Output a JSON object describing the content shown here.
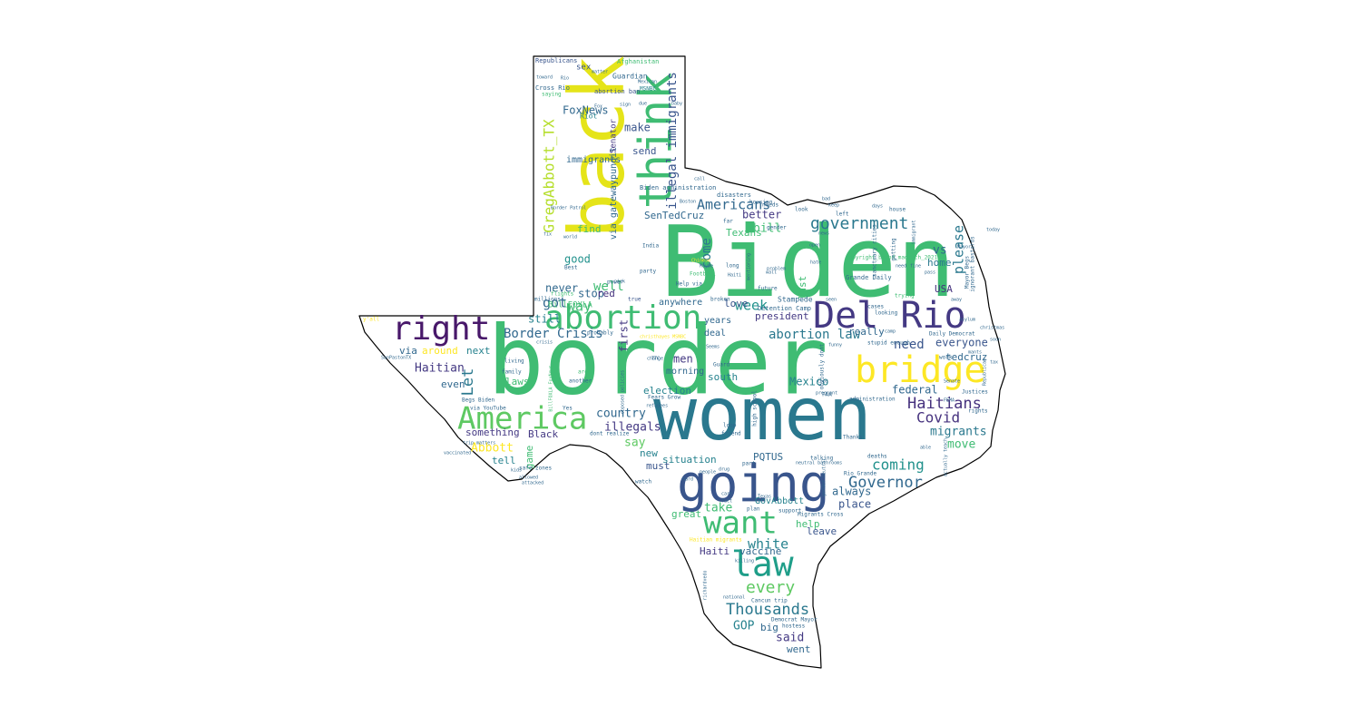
{
  "wordcloud": {
    "words": [
      {
        "text": "Biden",
        "color": "#3fbc73"
      },
      {
        "text": "border",
        "color": "#3fbc73"
      },
      {
        "text": "women",
        "color": "#2a788e"
      },
      {
        "text": "back",
        "color": "#e5e419"
      },
      {
        "text": "think",
        "color": "#3fbc73"
      },
      {
        "text": "going",
        "color": "#39558c"
      },
      {
        "text": "bridge",
        "color": "#fde725"
      },
      {
        "text": "Del Rio",
        "color": "#443983"
      },
      {
        "text": "abortion",
        "color": "#3fbc73"
      },
      {
        "text": "right",
        "color": "#48186a"
      },
      {
        "text": "America",
        "color": "#5ec962"
      },
      {
        "text": "law",
        "color": "#1f9e89"
      },
      {
        "text": "want",
        "color": "#3fbc73"
      },
      {
        "text": "government",
        "color": "#2a788e"
      },
      {
        "text": "GregAbbott_TX",
        "color": "#b5de2b"
      },
      {
        "text": "illegal immigrants",
        "color": "#39558c"
      },
      {
        "text": "Haitians",
        "color": "#46327e"
      },
      {
        "text": "every",
        "color": "#5ec962"
      },
      {
        "text": "Thousands",
        "color": "#2a788e"
      },
      {
        "text": "Americans",
        "color": "#31688e"
      },
      {
        "text": "Governor",
        "color": "#31688e"
      },
      {
        "text": "coming",
        "color": "#21918c"
      },
      {
        "text": "please",
        "color": "#2a788e"
      },
      {
        "text": "Covid",
        "color": "#46327e"
      },
      {
        "text": "white",
        "color": "#26828e"
      },
      {
        "text": "abortion law",
        "color": "#2a788e"
      },
      {
        "text": "Border Crisis",
        "color": "#31688e"
      },
      {
        "text": "Let",
        "color": "#2a788e"
      },
      {
        "text": "way",
        "color": "#3fbc73"
      },
      {
        "text": "got",
        "color": "#31688e"
      },
      {
        "text": "Haitian",
        "color": "#443983"
      },
      {
        "text": "Abbott",
        "color": "#fde725"
      },
      {
        "text": "need",
        "color": "#39558c"
      },
      {
        "text": "Mexico",
        "color": "#26828e"
      },
      {
        "text": "illegals",
        "color": "#443983"
      },
      {
        "text": "country",
        "color": "#31688e"
      },
      {
        "text": "week",
        "color": "#21918c"
      },
      {
        "text": "come",
        "color": "#2a788e"
      },
      {
        "text": "migrants",
        "color": "#2a788e"
      },
      {
        "text": "move",
        "color": "#3fbc73"
      },
      {
        "text": "say",
        "color": "#5ec962"
      },
      {
        "text": "said",
        "color": "#443983"
      },
      {
        "text": "GOP",
        "color": "#26828e"
      },
      {
        "text": "FoxNews",
        "color": "#31688e"
      },
      {
        "text": "well",
        "color": "#3fbc73"
      },
      {
        "text": "good",
        "color": "#21918c"
      },
      {
        "text": "stop",
        "color": "#31688e"
      },
      {
        "text": "still",
        "color": "#26828e"
      },
      {
        "text": "men",
        "color": "#443983"
      },
      {
        "text": "make",
        "color": "#39558c"
      },
      {
        "text": "vs",
        "color": "#31688e"
      },
      {
        "text": "home",
        "color": "#2a788e"
      },
      {
        "text": "federal",
        "color": "#31688e"
      },
      {
        "text": "everyone",
        "color": "#39558c"
      },
      {
        "text": "tedcruz",
        "color": "#31688e"
      },
      {
        "text": "place",
        "color": "#39558c"
      },
      {
        "text": "always",
        "color": "#31688e"
      },
      {
        "text": "take",
        "color": "#3fbc73"
      },
      {
        "text": "help",
        "color": "#3fbc73"
      },
      {
        "text": "leave",
        "color": "#39558c"
      },
      {
        "text": "situation",
        "color": "#26828e"
      },
      {
        "text": "election",
        "color": "#26828e"
      },
      {
        "text": "bill",
        "color": "#3fbc73"
      },
      {
        "text": "Texans",
        "color": "#3fbc73"
      },
      {
        "text": "better",
        "color": "#443983"
      },
      {
        "text": "president",
        "color": "#443983"
      },
      {
        "text": "first",
        "color": "#443983"
      },
      {
        "text": "never",
        "color": "#31688e"
      },
      {
        "text": "red",
        "color": "#46327e"
      },
      {
        "text": "find",
        "color": "#3fbc73"
      },
      {
        "text": "via",
        "color": "#31688e"
      },
      {
        "text": "around",
        "color": "#fde725"
      },
      {
        "text": "next",
        "color": "#26828e"
      },
      {
        "text": "even",
        "color": "#31688e"
      },
      {
        "text": "laws",
        "color": "#3fbc73"
      },
      {
        "text": "something",
        "color": "#443983"
      },
      {
        "text": "Black",
        "color": "#443983"
      },
      {
        "text": "tell",
        "color": "#26828e"
      },
      {
        "text": "game",
        "color": "#3fbc73"
      },
      {
        "text": "new",
        "color": "#26828e"
      },
      {
        "text": "must",
        "color": "#39558c"
      },
      {
        "text": "great",
        "color": "#3fbc73"
      },
      {
        "text": "Haiti",
        "color": "#443983"
      },
      {
        "text": "vaccine",
        "color": "#31688e"
      },
      {
        "text": "big",
        "color": "#31688e"
      },
      {
        "text": "went",
        "color": "#31688e"
      },
      {
        "text": "love",
        "color": "#39558c"
      },
      {
        "text": "USA",
        "color": "#46327e"
      },
      {
        "text": "south",
        "color": "#26828e"
      },
      {
        "text": "morning",
        "color": "#31688e"
      },
      {
        "text": "deal",
        "color": "#31688e"
      },
      {
        "text": "years",
        "color": "#31688e"
      },
      {
        "text": "anywhere",
        "color": "#31688e"
      },
      {
        "text": "SenTedCruz",
        "color": "#31688e"
      },
      {
        "text": "send",
        "color": "#39558c"
      },
      {
        "text": "immigrants",
        "color": "#31688e"
      },
      {
        "text": "via gatewaypundit",
        "color": "#31688e"
      },
      {
        "text": "BillFOXLA",
        "color": "#3fbc73"
      },
      {
        "text": "PQTUS",
        "color": "#31688e"
      },
      {
        "text": "GovAbbott",
        "color": "#26828e"
      },
      {
        "text": "really",
        "color": "#31688e"
      },
      {
        "text": "last",
        "color": "#3fbc73"
      },
      {
        "text": "Stampede",
        "color": "#31688e"
      },
      {
        "text": "Detention Camp",
        "color": "#31688e"
      },
      {
        "text": "Grande Daily",
        "color": "#31688e"
      },
      {
        "text": "Republicans",
        "color": "#39558c"
      },
      {
        "text": "Afghanistan",
        "color": "#3fbc73"
      },
      {
        "text": "sex",
        "color": "#39558c"
      },
      {
        "text": "Guardian",
        "color": "#31688e"
      },
      {
        "text": "Cross Rio",
        "color": "#31688e"
      },
      {
        "text": "abortion ban",
        "color": "#39558c"
      },
      {
        "text": "MSNBC",
        "color": "#26828e"
      },
      {
        "text": "Riot",
        "color": "#26828e"
      },
      {
        "text": "Senator",
        "color": "#443983"
      },
      {
        "text": "Biden administration",
        "color": "#31688e"
      },
      {
        "text": "disasters",
        "color": "#31688e"
      },
      {
        "text": "housing",
        "color": "#31688e"
      },
      {
        "text": "far",
        "color": "#31688e"
      },
      {
        "text": "needs",
        "color": "#31688e"
      },
      {
        "text": "India",
        "color": "#31688e"
      },
      {
        "text": "party",
        "color": "#31688e"
      },
      {
        "text": "Football",
        "color": "#3fbc73"
      },
      {
        "text": "Help via",
        "color": "#31688e"
      },
      {
        "text": "true",
        "color": "#39558c"
      },
      {
        "text": "broken",
        "color": "#31688e"
      },
      {
        "text": "millions",
        "color": "#31688e"
      },
      {
        "text": "flights",
        "color": "#3fbc73"
      },
      {
        "text": "probably",
        "color": "#31688e"
      },
      {
        "text": "crisis",
        "color": "#31688e"
      },
      {
        "text": "living",
        "color": "#31688e"
      },
      {
        "text": "family",
        "color": "#31688e"
      },
      {
        "text": "another",
        "color": "#31688e"
      },
      {
        "text": "Yes",
        "color": "#31688e"
      },
      {
        "text": "Seems",
        "color": "#31688e"
      },
      {
        "text": "dont realize",
        "color": "#31688e"
      },
      {
        "text": "Fears Grow",
        "color": "#31688e"
      },
      {
        "text": "loop",
        "color": "#31688e"
      },
      {
        "text": "friend",
        "color": "#31688e"
      },
      {
        "text": "high school",
        "color": "#31688e"
      },
      {
        "text": "Guard",
        "color": "#31688e"
      },
      {
        "text": "part",
        "color": "#31688e"
      },
      {
        "text": "plan",
        "color": "#31688e"
      },
      {
        "text": "support",
        "color": "#31688e"
      },
      {
        "text": "Migrants Cross",
        "color": "#31688e"
      },
      {
        "text": "hostess",
        "color": "#31688e"
      },
      {
        "text": "Democrat Mayor",
        "color": "#31688e"
      },
      {
        "text": "Cancun trip",
        "color": "#31688e"
      },
      {
        "text": "national",
        "color": "#31688e"
      },
      {
        "text": "Haitian migrants",
        "color": "#fde725"
      },
      {
        "text": "Rio Grande",
        "color": "#31688e"
      },
      {
        "text": "deaths",
        "color": "#31688e"
      },
      {
        "text": "Thanks",
        "color": "#31688e"
      },
      {
        "text": "talking",
        "color": "#31688e"
      },
      {
        "text": "administration",
        "color": "#31688e"
      },
      {
        "text": "stupid enough",
        "color": "#31688e"
      },
      {
        "text": "Daily Democrat",
        "color": "#31688e"
      },
      {
        "text": "cases",
        "color": "#31688e"
      },
      {
        "text": "looking",
        "color": "#31688e"
      },
      {
        "text": "trying",
        "color": "#3fbc73"
      },
      {
        "text": "Justices",
        "color": "#31688e"
      },
      {
        "text": "rights",
        "color": "#31688e"
      },
      {
        "text": "work",
        "color": "#31688e"
      },
      {
        "text": "Mayor Begs",
        "color": "#31688e"
      },
      {
        "text": "copyright_brand_madrich_2021",
        "color": "#3fbc73"
      },
      {
        "text": "future",
        "color": "#31688e"
      },
      {
        "text": "look",
        "color": "#31688e"
      },
      {
        "text": "left",
        "color": "#31688e"
      },
      {
        "text": "house",
        "color": "#31688e"
      },
      {
        "text": "getting",
        "color": "#31688e"
      },
      {
        "text": "problem",
        "color": "#31688e"
      },
      {
        "text": "long",
        "color": "#31688e"
      },
      {
        "text": "Border Patrol",
        "color": "#31688e"
      },
      {
        "text": "world",
        "color": "#31688e"
      },
      {
        "text": "power",
        "color": "#31688e"
      },
      {
        "text": "Begs Biden",
        "color": "#31688e"
      },
      {
        "text": "via YouTube",
        "color": "#31688e"
      },
      {
        "text": "SanPastonTX",
        "color": "#31688e"
      },
      {
        "text": "trip matters",
        "color": "#31688e"
      },
      {
        "text": "vaccinated",
        "color": "#31688e"
      },
      {
        "text": "safe zones",
        "color": "#31688e"
      },
      {
        "text": "y'all",
        "color": "#fde725"
      },
      {
        "text": "saying",
        "color": "#3fbc73"
      },
      {
        "text": "Maybe",
        "color": "#31688e"
      },
      {
        "text": "Chinese",
        "color": "#fde725"
      },
      {
        "text": "Best",
        "color": "#31688e"
      },
      {
        "text": "area",
        "color": "#3fbc73"
      },
      {
        "text": "gender",
        "color": "#31688e"
      },
      {
        "text": "FAA",
        "color": "#31688e"
      },
      {
        "text": "christhayes MSNBC",
        "color": "#fde725"
      },
      {
        "text": "obviously dont",
        "color": "#31688e"
      },
      {
        "text": "actually teach",
        "color": "#31688e"
      },
      {
        "text": "pregnant",
        "color": "#31688e"
      },
      {
        "text": "ignorant bastards",
        "color": "#31688e"
      },
      {
        "text": "sanctuary cities",
        "color": "#31688e"
      },
      {
        "text": "gender neutral",
        "color": "#31688e"
      },
      {
        "text": "change",
        "color": "#31688e"
      },
      {
        "text": "refugees",
        "color": "#31688e"
      },
      {
        "text": "allowed",
        "color": "#31688e"
      },
      {
        "text": "kids",
        "color": "#31688e"
      },
      {
        "text": "neutral bathrooms",
        "color": "#31688e"
      },
      {
        "text": "soon",
        "color": "#31688e"
      },
      {
        "text": "able",
        "color": "#31688e"
      },
      {
        "text": "mants",
        "color": "#31688e"
      },
      {
        "text": "away",
        "color": "#31688e"
      },
      {
        "text": "pass",
        "color": "#31688e"
      },
      {
        "text": "opposed policies",
        "color": "#31688e"
      },
      {
        "text": "christmas",
        "color": "#31688e"
      },
      {
        "text": "mentioning",
        "color": "#31688e"
      },
      {
        "text": "hate",
        "color": "#31688e"
      },
      {
        "text": "Mexican",
        "color": "#31688e"
      },
      {
        "text": "Fox",
        "color": "#31688e"
      },
      {
        "text": "matter",
        "color": "#31688e"
      },
      {
        "text": "Rio",
        "color": "#31688e"
      },
      {
        "text": "toward",
        "color": "#31688e"
      },
      {
        "text": "watch",
        "color": "#31688e"
      },
      {
        "text": "drug",
        "color": "#31688e"
      },
      {
        "text": "Texas",
        "color": "#31688e"
      },
      {
        "text": "people",
        "color": "#31688e"
      },
      {
        "text": "today",
        "color": "#31688e"
      },
      {
        "text": "Mayor",
        "color": "#31688e"
      },
      {
        "text": "Haiti",
        "color": "#31688e"
      },
      {
        "text": "immigrant",
        "color": "#31688e"
      },
      {
        "text": "Republican",
        "color": "#31688e"
      },
      {
        "text": "asylum",
        "color": "#31688e"
      },
      {
        "text": "camp",
        "color": "#31688e"
      },
      {
        "text": "seen",
        "color": "#31688e"
      },
      {
        "text": "news",
        "color": "#31688e"
      },
      {
        "text": "open",
        "color": "#31688e"
      },
      {
        "text": "call",
        "color": "#31688e"
      },
      {
        "text": "fix",
        "color": "#31688e"
      },
      {
        "text": "pick",
        "color": "#31688e"
      },
      {
        "text": "fact",
        "color": "#31688e"
      },
      {
        "text": "baby",
        "color": "#31688e"
      },
      {
        "text": "sign",
        "color": "#31688e"
      },
      {
        "text": "due",
        "color": "#31688e"
      },
      {
        "text": "care",
        "color": "#31688e"
      },
      {
        "text": "wall",
        "color": "#31688e"
      },
      {
        "text": "Boston",
        "color": "#31688e"
      },
      {
        "text": "cops",
        "color": "#31688e"
      },
      {
        "text": "funny",
        "color": "#31688e"
      },
      {
        "text": "Senate",
        "color": "#31688e"
      },
      {
        "text": "FEMA",
        "color": "#31688e"
      },
      {
        "text": "hard",
        "color": "#31688e"
      },
      {
        "text": "attacked",
        "color": "#31688e"
      },
      {
        "text": "killing",
        "color": "#31688e"
      },
      {
        "text": "richardvedo",
        "color": "#31688e"
      },
      {
        "text": "BillFOXLA FoxNews",
        "color": "#3fbc73"
      },
      {
        "text": "TTC",
        "color": "#31688e"
      },
      {
        "text": "need",
        "color": "#31688e"
      },
      {
        "text": "fine",
        "color": "#31688e"
      },
      {
        "text": "days",
        "color": "#31688e"
      },
      {
        "text": "keep",
        "color": "#31688e"
      },
      {
        "text": "bad",
        "color": "#31688e"
      },
      {
        "text": "tax",
        "color": "#31688e"
      },
      {
        "text": "done",
        "color": "#31688e"
      }
    ]
  }
}
